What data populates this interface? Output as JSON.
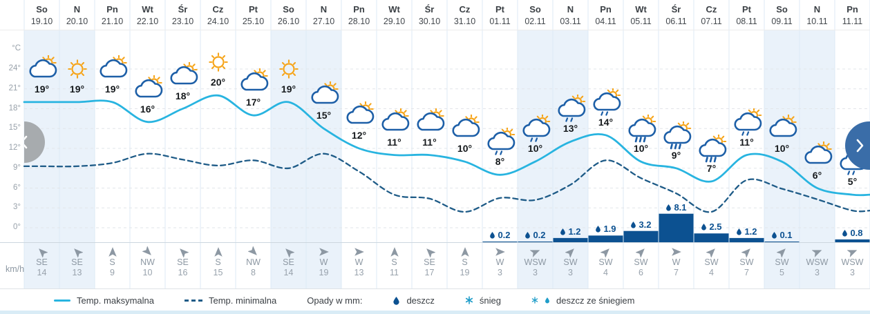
{
  "units": {
    "temp": "°C",
    "wind": "km/h"
  },
  "y_axis_ticks": [
    "24°",
    "21°",
    "18°",
    "15°",
    "12°",
    "9°",
    "6°",
    "3°",
    "0°"
  ],
  "nav": {
    "prev": "‹",
    "next": "›"
  },
  "colors": {
    "temp_max_line": "#28b4e0",
    "temp_min_line": "#1e5b87",
    "precip": "#0c5191",
    "weekend_bg": "#eaf2fa",
    "icon_sun": "#f6a51b",
    "icon_cloud": "#1d5fa7",
    "snow_icon": "#1f9dc9",
    "grid_vertical": "#dceaf5",
    "grid_horizontal": "#e2e5e9",
    "nav_prev_bg": "#a7abae",
    "nav_next_bg": "#3a6da8"
  },
  "days": [
    {
      "name": "So",
      "date": "19.10",
      "icon": "sun-cloud",
      "temp": "19°",
      "precip": null,
      "wind_dir": "SE",
      "wind_speed": "14",
      "weekend": true
    },
    {
      "name": "N",
      "date": "20.10",
      "icon": "sun",
      "temp": "19°",
      "precip": null,
      "wind_dir": "SE",
      "wind_speed": "13",
      "weekend": true
    },
    {
      "name": "Pn",
      "date": "21.10",
      "icon": "sun-cloud",
      "temp": "19°",
      "precip": null,
      "wind_dir": "S",
      "wind_speed": "9",
      "weekend": false
    },
    {
      "name": "Wt",
      "date": "22.10",
      "icon": "sun-cloud",
      "temp": "16°",
      "precip": null,
      "wind_dir": "NW",
      "wind_speed": "10",
      "weekend": false
    },
    {
      "name": "Śr",
      "date": "23.10",
      "icon": "sun-cloud",
      "temp": "18°",
      "precip": null,
      "wind_dir": "SE",
      "wind_speed": "16",
      "weekend": false
    },
    {
      "name": "Cz",
      "date": "24.10",
      "icon": "sun",
      "temp": "20°",
      "precip": null,
      "wind_dir": "S",
      "wind_speed": "15",
      "weekend": false
    },
    {
      "name": "Pt",
      "date": "25.10",
      "icon": "sun-cloud",
      "temp": "17°",
      "precip": null,
      "wind_dir": "NW",
      "wind_speed": "8",
      "weekend": false
    },
    {
      "name": "So",
      "date": "26.10",
      "icon": "sun",
      "temp": "19°",
      "precip": null,
      "wind_dir": "SE",
      "wind_speed": "14",
      "weekend": true
    },
    {
      "name": "N",
      "date": "27.10",
      "icon": "sun-cloud",
      "temp": "15°",
      "precip": null,
      "wind_dir": "W",
      "wind_speed": "19",
      "weekend": true
    },
    {
      "name": "Pn",
      "date": "28.10",
      "icon": "sun-cloud",
      "temp": "12°",
      "precip": null,
      "wind_dir": "W",
      "wind_speed": "13",
      "weekend": false
    },
    {
      "name": "Wt",
      "date": "29.10",
      "icon": "sun-cloud",
      "temp": "11°",
      "precip": null,
      "wind_dir": "S",
      "wind_speed": "11",
      "weekend": false
    },
    {
      "name": "Śr",
      "date": "30.10",
      "icon": "sun-cloud",
      "temp": "11°",
      "precip": null,
      "wind_dir": "SE",
      "wind_speed": "17",
      "weekend": false
    },
    {
      "name": "Cz",
      "date": "31.10",
      "icon": "sun-cloud",
      "temp": "10°",
      "precip": null,
      "wind_dir": "S",
      "wind_speed": "19",
      "weekend": false
    },
    {
      "name": "Pt",
      "date": "01.11",
      "icon": "sun-cloud-drizzle",
      "temp": "8°",
      "precip": "0.2",
      "wind_dir": "W",
      "wind_speed": "3",
      "weekend": false
    },
    {
      "name": "So",
      "date": "02.11",
      "icon": "sun-cloud-drizzle",
      "temp": "10°",
      "precip": "0.2",
      "wind_dir": "WSW",
      "wind_speed": "3",
      "weekend": true
    },
    {
      "name": "N",
      "date": "03.11",
      "icon": "sun-cloud-drizzle",
      "temp": "13°",
      "precip": "1.2",
      "wind_dir": "SW",
      "wind_speed": "3",
      "weekend": true
    },
    {
      "name": "Pn",
      "date": "04.11",
      "icon": "sun-cloud-drizzle",
      "temp": "14°",
      "precip": "1.9",
      "wind_dir": "SW",
      "wind_speed": "4",
      "weekend": false
    },
    {
      "name": "Wt",
      "date": "05.11",
      "icon": "sun-cloud-rain",
      "temp": "10°",
      "precip": "3.2",
      "wind_dir": "SW",
      "wind_speed": "6",
      "weekend": false
    },
    {
      "name": "Śr",
      "date": "06.11",
      "icon": "sun-cloud-rain",
      "temp": "9°",
      "precip": "8.1",
      "wind_dir": "W",
      "wind_speed": "7",
      "weekend": false
    },
    {
      "name": "Cz",
      "date": "07.11",
      "icon": "sun-cloud-rain",
      "temp": "7°",
      "precip": "2.5",
      "wind_dir": "SW",
      "wind_speed": "4",
      "weekend": false
    },
    {
      "name": "Pt",
      "date": "08.11",
      "icon": "sun-cloud-drizzle",
      "temp": "11°",
      "precip": "1.2",
      "wind_dir": "SW",
      "wind_speed": "7",
      "weekend": false
    },
    {
      "name": "So",
      "date": "09.11",
      "icon": "sun-cloud",
      "temp": "10°",
      "precip": "0.1",
      "wind_dir": "SW",
      "wind_speed": "5",
      "weekend": true
    },
    {
      "name": "N",
      "date": "10.11",
      "icon": "sun-cloud",
      "temp": "6°",
      "precip": null,
      "wind_dir": "WSW",
      "wind_speed": "3",
      "weekend": true
    },
    {
      "name": "Pn",
      "date": "11.11",
      "icon": "sun-cloud-drizzle",
      "temp": "5°",
      "precip": "0.8",
      "wind_dir": "WSW",
      "wind_speed": "3",
      "weekend": false
    }
  ],
  "chart_data": {
    "type": "line",
    "title": "Long-term weather forecast",
    "x_categories": [
      "19.10",
      "20.10",
      "21.10",
      "22.10",
      "23.10",
      "24.10",
      "25.10",
      "26.10",
      "27.10",
      "28.10",
      "29.10",
      "30.10",
      "31.10",
      "01.11",
      "02.11",
      "03.11",
      "04.11",
      "05.11",
      "06.11",
      "07.11",
      "08.11",
      "09.11",
      "10.11",
      "11.11"
    ],
    "ylabel": "°C",
    "ylim": [
      0,
      27
    ],
    "y_ticks": [
      0,
      3,
      6,
      9,
      12,
      15,
      18,
      21,
      24
    ],
    "grid": true,
    "legend_position": "bottom",
    "series": [
      {
        "name": "Temp. maksymalna",
        "type": "line",
        "style": "solid",
        "color": "#28b4e0",
        "values": [
          19,
          19,
          19,
          16,
          18,
          20,
          17,
          19,
          15,
          12,
          11,
          11,
          10,
          8,
          10,
          13,
          14,
          10,
          9,
          7,
          11,
          10,
          6,
          5
        ]
      },
      {
        "name": "Temp. minimalna",
        "type": "line",
        "style": "dashed",
        "color": "#1e5b87",
        "values": [
          9.3,
          9.3,
          9.8,
          11.2,
          10.3,
          9.4,
          10.2,
          9,
          11.2,
          8.5,
          5,
          4.4,
          2.4,
          4.5,
          4.2,
          6.5,
          10.2,
          7.5,
          5.2,
          2.4,
          7.2,
          5.9,
          4.3,
          2.6
        ]
      },
      {
        "name": "Opady w mm",
        "type": "bar",
        "color": "#0c5191",
        "values": [
          null,
          null,
          null,
          null,
          null,
          null,
          null,
          null,
          null,
          null,
          null,
          null,
          null,
          0.2,
          0.2,
          1.2,
          1.9,
          3.2,
          8.1,
          2.5,
          1.2,
          0.1,
          null,
          0.8
        ]
      }
    ]
  },
  "legend": {
    "items": [
      {
        "type": "line-solid",
        "label": "Temp. maksymalna"
      },
      {
        "type": "line-dashed",
        "label": "Temp. minimalna"
      },
      {
        "type": "text",
        "label": "Opady w mm:"
      },
      {
        "type": "drop",
        "label": "deszcz"
      },
      {
        "type": "snow",
        "label": "śnieg"
      },
      {
        "type": "snow-drop",
        "label": "deszcz ze śniegiem"
      }
    ]
  },
  "wind_to_bearing": {
    "S": 0,
    "SW": 45,
    "WSW": 67.5,
    "W": 90,
    "NW": 135,
    "SE": 315,
    "N": 180,
    "E": 270,
    "NE": 225,
    "ENE": 247.5
  }
}
